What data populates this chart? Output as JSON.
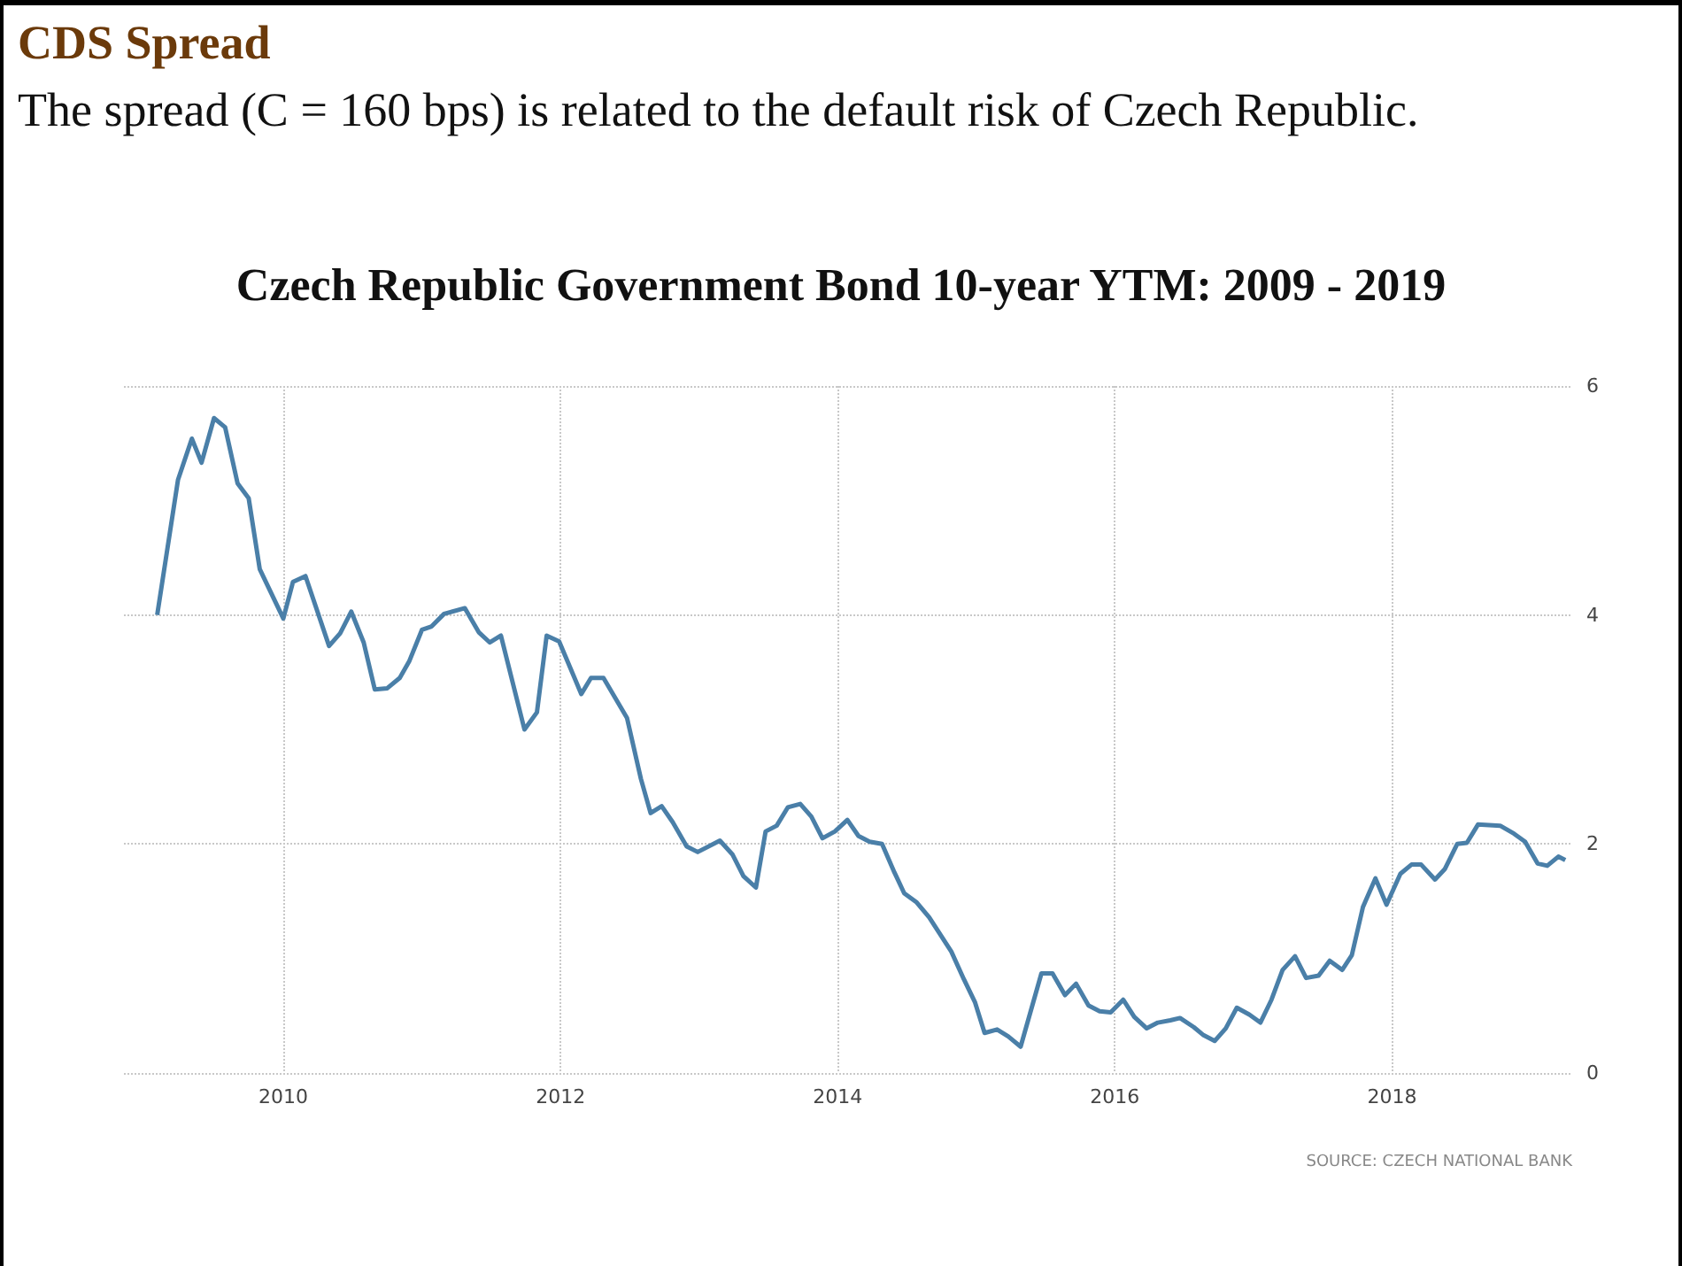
{
  "chart_data": {
    "type": "line",
    "title": "Czech Republic Government Bond 10-year YTM: 2009 - 2019",
    "annotations": [
      "CDS Spread",
      "The spread (C = 160 bps) is related to the default risk of Czech Republic.",
      "SOURCE: CZECH NATIONAL BANK"
    ],
    "x": [
      2009.09,
      2009.24,
      2009.34,
      2009.41,
      2009.5,
      2009.58,
      2009.67,
      2009.75,
      2009.83,
      2010.0,
      2010.07,
      2010.16,
      2010.33,
      2010.41,
      2010.49,
      2010.58,
      2010.66,
      2010.75,
      2010.84,
      2010.91,
      2011.0,
      2011.07,
      2011.16,
      2011.31,
      2011.41,
      2011.49,
      2011.57,
      2011.74,
      2011.83,
      2011.9,
      2011.99,
      2012.15,
      2012.22,
      2012.31,
      2012.48,
      2012.58,
      2012.65,
      2012.73,
      2012.81,
      2012.91,
      2012.99,
      2013.15,
      2013.24,
      2013.32,
      2013.41,
      2013.48,
      2013.56,
      2013.64,
      2013.73,
      2013.81,
      2013.89,
      2013.98,
      2014.07,
      2014.15,
      2014.23,
      2014.32,
      2014.41,
      2014.48,
      2014.57,
      2014.66,
      2014.82,
      2014.91,
      2014.99,
      2015.06,
      2015.15,
      2015.23,
      2015.32,
      2015.47,
      2015.55,
      2015.64,
      2015.72,
      2015.81,
      2015.89,
      2015.97,
      2016.06,
      2016.14,
      2016.23,
      2016.31,
      2016.4,
      2016.47,
      2016.57,
      2016.64,
      2016.72,
      2016.8,
      2016.88,
      2016.97,
      2017.05,
      2017.13,
      2017.21,
      2017.3,
      2017.38,
      2017.47,
      2017.55,
      2017.64,
      2017.71,
      2017.79,
      2017.88,
      2017.96,
      2018.06,
      2018.14,
      2018.21,
      2018.31,
      2018.38,
      2018.47,
      2018.54,
      2018.62,
      2018.78,
      2018.88,
      2018.96,
      2019.05,
      2019.12,
      2019.2,
      2019.25
    ],
    "series": [
      {
        "color": "#4a7fa8",
        "values": [
          4.0,
          5.18,
          5.54,
          5.33,
          5.72,
          5.64,
          5.15,
          5.02,
          4.4,
          3.97,
          4.29,
          4.34,
          3.73,
          3.84,
          4.03,
          3.76,
          3.35,
          3.36,
          3.45,
          3.6,
          3.87,
          3.9,
          4.01,
          4.06,
          3.85,
          3.76,
          3.82,
          3.0,
          3.15,
          3.82,
          3.77,
          3.31,
          3.45,
          3.45,
          3.1,
          2.57,
          2.27,
          2.33,
          2.19,
          1.98,
          1.93,
          2.03,
          1.91,
          1.72,
          1.62,
          2.11,
          2.16,
          2.32,
          2.35,
          2.24,
          2.05,
          2.11,
          2.21,
          2.07,
          2.02,
          2.0,
          1.75,
          1.57,
          1.49,
          1.36,
          1.06,
          0.82,
          0.62,
          0.35,
          0.38,
          0.32,
          0.23,
          0.87,
          0.87,
          0.68,
          0.78,
          0.59,
          0.54,
          0.53,
          0.64,
          0.49,
          0.39,
          0.44,
          0.46,
          0.48,
          0.4,
          0.33,
          0.28,
          0.39,
          0.57,
          0.51,
          0.44,
          0.64,
          0.9,
          1.02,
          0.83,
          0.85,
          0.98,
          0.9,
          1.03,
          1.45,
          1.7,
          1.47,
          1.74,
          1.82,
          1.82,
          1.69,
          1.78,
          2.0,
          2.01,
          2.17,
          2.16,
          2.09,
          2.02,
          1.83,
          1.81,
          1.89,
          1.86
        ]
      }
    ],
    "xlim": [
      2008.85,
      2019.3
    ],
    "ylim": [
      0,
      6
    ],
    "xticks": [
      2010,
      2012,
      2014,
      2016,
      2018
    ],
    "yticks": [
      0,
      2,
      4,
      6
    ],
    "grid": true
  }
}
